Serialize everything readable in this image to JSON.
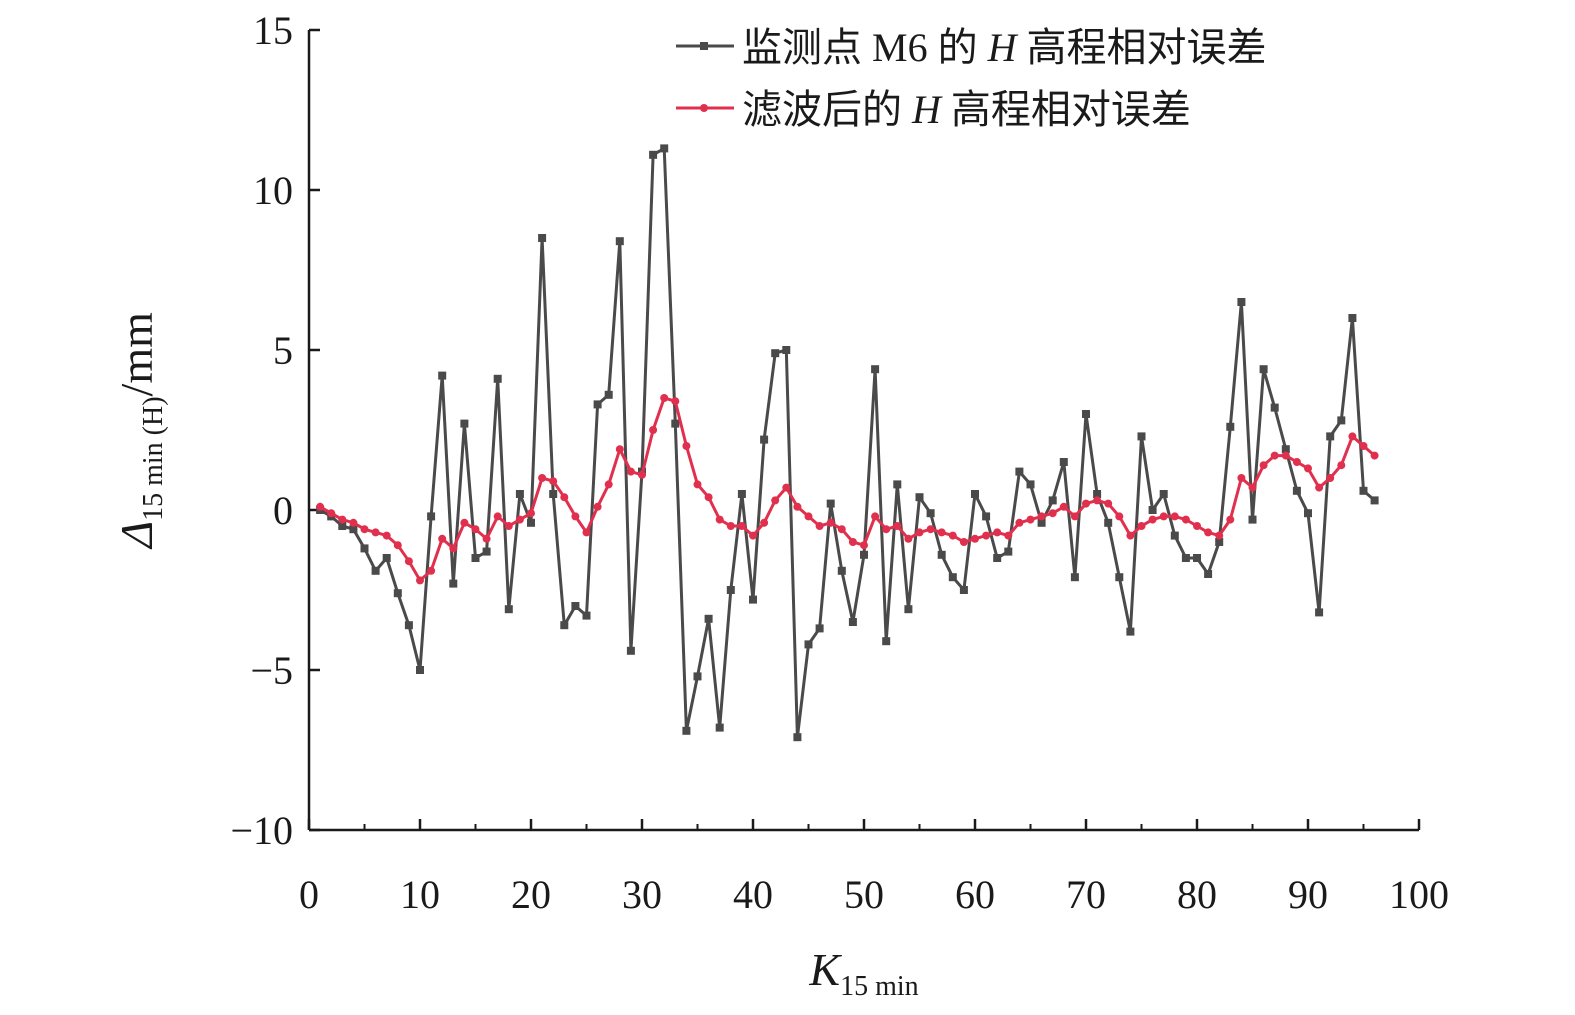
{
  "chart_data": {
    "type": "line",
    "x_axis": {
      "label_main": "K",
      "label_sub": "15 min",
      "lim": [
        0,
        100
      ],
      "ticks": [
        0,
        10,
        20,
        30,
        40,
        50,
        60,
        70,
        80,
        90,
        100
      ],
      "tick_labels": [
        "0",
        "10",
        "20",
        "30",
        "40",
        "50",
        "60",
        "70",
        "80",
        "90",
        "100"
      ]
    },
    "y_axis": {
      "label_main": "Δ",
      "label_sub": "15 min (H)",
      "label_unit": "/mm",
      "lim": [
        -10,
        15
      ],
      "ticks": [
        -10,
        -5,
        0,
        5,
        10,
        15
      ],
      "tick_labels": [
        "−10",
        "−5",
        "0",
        "5",
        "10",
        "15"
      ]
    },
    "legend": {
      "position": "top-right",
      "entries": [
        {
          "prefix": "监测点 M6 的 ",
          "var": "H",
          "suffix": " 高程相对误差"
        },
        {
          "prefix": "滤波后的 ",
          "var": "H",
          "suffix": " 高程相对误差"
        }
      ]
    },
    "x": [
      1,
      2,
      3,
      4,
      5,
      6,
      7,
      8,
      9,
      10,
      11,
      12,
      13,
      14,
      15,
      16,
      17,
      18,
      19,
      20,
      21,
      22,
      23,
      24,
      25,
      26,
      27,
      28,
      29,
      30,
      31,
      32,
      33,
      34,
      35,
      36,
      37,
      38,
      39,
      40,
      41,
      42,
      43,
      44,
      45,
      46,
      47,
      48,
      49,
      50,
      51,
      52,
      53,
      54,
      55,
      56,
      57,
      58,
      59,
      60,
      61,
      62,
      63,
      64,
      65,
      66,
      67,
      68,
      69,
      70,
      71,
      72,
      73,
      74,
      75,
      76,
      77,
      78,
      79,
      80,
      81,
      82,
      83,
      84,
      85,
      86,
      87,
      88,
      89,
      90,
      91,
      92,
      93,
      94,
      95,
      96
    ],
    "series": [
      {
        "color": "#4a4a4a",
        "marker": "square",
        "values": [
          0,
          -0.2,
          -0.5,
          -0.6,
          -1.2,
          -1.9,
          -1.5,
          -2.6,
          -3.6,
          -5.0,
          -0.2,
          4.2,
          -2.3,
          2.7,
          -1.5,
          -1.3,
          4.1,
          -3.1,
          0.5,
          -0.4,
          8.5,
          0.5,
          -3.6,
          -3.0,
          -3.3,
          3.3,
          3.6,
          8.4,
          -4.4,
          1.2,
          11.1,
          11.3,
          2.7,
          -6.9,
          -5.2,
          -3.4,
          -6.8,
          -2.5,
          0.5,
          -2.8,
          2.2,
          4.9,
          5.0,
          -7.1,
          -4.2,
          -3.7,
          0.2,
          -1.9,
          -3.5,
          -1.4,
          4.4,
          -4.1,
          0.8,
          -3.1,
          0.4,
          -0.1,
          -1.4,
          -2.1,
          -2.5,
          0.5,
          -0.2,
          -1.5,
          -1.3,
          1.2,
          0.8,
          -0.4,
          0.3,
          1.5,
          -2.1,
          3.0,
          0.5,
          -0.4,
          -2.1,
          -3.8,
          2.3,
          0.0,
          0.5,
          -0.8,
          -1.5,
          -1.5,
          -2.0,
          -1.0,
          2.6,
          6.5,
          -0.3,
          4.4,
          3.2,
          1.9,
          0.6,
          -0.1,
          -3.2,
          2.3,
          2.8,
          6.0,
          0.6,
          0.3
        ]
      },
      {
        "color": "#e0304e",
        "marker": "circle",
        "values": [
          0.1,
          -0.1,
          -0.3,
          -0.4,
          -0.6,
          -0.7,
          -0.8,
          -1.1,
          -1.6,
          -2.2,
          -1.9,
          -0.9,
          -1.2,
          -0.4,
          -0.6,
          -0.9,
          -0.2,
          -0.5,
          -0.3,
          -0.1,
          1.0,
          0.9,
          0.4,
          -0.2,
          -0.7,
          0.1,
          0.8,
          1.9,
          1.2,
          1.1,
          2.5,
          3.5,
          3.4,
          2.0,
          0.8,
          0.4,
          -0.3,
          -0.5,
          -0.5,
          -0.8,
          -0.4,
          0.3,
          0.7,
          0.1,
          -0.2,
          -0.5,
          -0.4,
          -0.6,
          -1.0,
          -1.1,
          -0.2,
          -0.6,
          -0.5,
          -0.9,
          -0.7,
          -0.6,
          -0.7,
          -0.8,
          -1.0,
          -0.9,
          -0.8,
          -0.7,
          -0.8,
          -0.4,
          -0.3,
          -0.2,
          -0.1,
          0.1,
          -0.2,
          0.2,
          0.3,
          0.2,
          -0.2,
          -0.8,
          -0.5,
          -0.3,
          -0.2,
          -0.2,
          -0.3,
          -0.5,
          -0.7,
          -0.8,
          -0.3,
          1.0,
          0.7,
          1.4,
          1.7,
          1.7,
          1.5,
          1.3,
          0.7,
          1.0,
          1.4,
          2.3,
          2.0,
          1.7
        ]
      }
    ]
  }
}
